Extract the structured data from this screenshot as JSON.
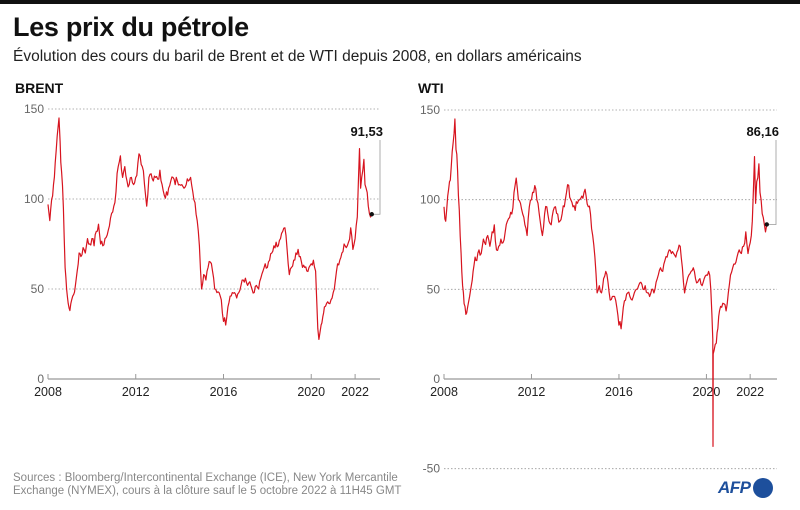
{
  "header": {
    "title": "Les prix du pétrole",
    "subtitle": "Évolution des cours du baril de Brent et de WTI depuis 2008, en dollars américains"
  },
  "footer": {
    "source_line1": "Sources : Bloomberg/Intercontinental Exchange (ICE), New York Mercantile",
    "source_line2": "Exchange (NYMEX), cours à la clôture sauf le 5 octobre 2022 à 11H45 GMT",
    "logo_text": "AFP"
  },
  "colors": {
    "line": "#d7141f",
    "grid": "#999999",
    "axis": "#999999",
    "logo": "#1d4f9c"
  },
  "chart_data": [
    {
      "type": "line",
      "title": "BRENT",
      "xlabel": "",
      "ylabel": "",
      "x_ticks": [
        "2008",
        "2012",
        "2016",
        "2020",
        "2022"
      ],
      "x_tick_values": [
        2008,
        2012,
        2016,
        2020,
        2022
      ],
      "y_ticks": [
        "0",
        "50",
        "100",
        "150"
      ],
      "y_tick_values": [
        0,
        50,
        100,
        150
      ],
      "xlim": [
        2008,
        2022.77
      ],
      "ylim": [
        0,
        150
      ],
      "grid": true,
      "last_value_label": "91,53",
      "last_value": 91.53,
      "series": [
        {
          "name": "Brent",
          "x": [
            2008.0,
            2008.08,
            2008.17,
            2008.25,
            2008.33,
            2008.42,
            2008.5,
            2008.55,
            2008.62,
            2008.7,
            2008.78,
            2008.85,
            2008.92,
            2009.0,
            2009.08,
            2009.17,
            2009.25,
            2009.33,
            2009.42,
            2009.5,
            2009.6,
            2009.7,
            2009.8,
            2009.9,
            2010.0,
            2010.1,
            2010.2,
            2010.3,
            2010.4,
            2010.5,
            2010.6,
            2010.7,
            2010.8,
            2010.9,
            2011.0,
            2011.1,
            2011.2,
            2011.3,
            2011.4,
            2011.5,
            2011.6,
            2011.7,
            2011.8,
            2011.9,
            2012.0,
            2012.1,
            2012.2,
            2012.3,
            2012.4,
            2012.5,
            2012.6,
            2012.7,
            2012.8,
            2012.9,
            2013.0,
            2013.1,
            2013.2,
            2013.3,
            2013.4,
            2013.5,
            2013.6,
            2013.7,
            2013.8,
            2013.9,
            2014.0,
            2014.1,
            2014.2,
            2014.3,
            2014.4,
            2014.5,
            2014.6,
            2014.7,
            2014.8,
            2014.9,
            2015.0,
            2015.1,
            2015.2,
            2015.3,
            2015.4,
            2015.5,
            2015.6,
            2015.7,
            2015.8,
            2015.9,
            2016.0,
            2016.05,
            2016.1,
            2016.2,
            2016.3,
            2016.4,
            2016.5,
            2016.6,
            2016.7,
            2016.8,
            2016.9,
            2017.0,
            2017.1,
            2017.2,
            2017.3,
            2017.4,
            2017.5,
            2017.6,
            2017.7,
            2017.8,
            2017.9,
            2018.0,
            2018.1,
            2018.2,
            2018.3,
            2018.4,
            2018.5,
            2018.6,
            2018.7,
            2018.8,
            2018.9,
            2019.0,
            2019.1,
            2019.2,
            2019.3,
            2019.4,
            2019.5,
            2019.6,
            2019.7,
            2019.8,
            2019.9,
            2020.0,
            2020.1,
            2020.2,
            2020.25,
            2020.3,
            2020.35,
            2020.45,
            2020.6,
            2020.7,
            2020.8,
            2020.9,
            2021.0,
            2021.1,
            2021.2,
            2021.3,
            2021.4,
            2021.5,
            2021.6,
            2021.7,
            2021.8,
            2021.9,
            2022.0,
            2022.1,
            2022.15,
            2022.2,
            2022.25,
            2022.3,
            2022.4,
            2022.45,
            2022.5,
            2022.6,
            2022.65,
            2022.7,
            2022.76
          ],
          "y": [
            97,
            88,
            100,
            108,
            120,
            135,
            145,
            132,
            115,
            95,
            62,
            50,
            42,
            38,
            44,
            47,
            52,
            60,
            70,
            68,
            73,
            70,
            78,
            75,
            78,
            74,
            82,
            86,
            75,
            74,
            78,
            80,
            85,
            92,
            96,
            104,
            118,
            124,
            112,
            118,
            110,
            108,
            112,
            108,
            112,
            120,
            124,
            118,
            108,
            96,
            112,
            114,
            110,
            112,
            111,
            116,
            108,
            102,
            104,
            106,
            110,
            112,
            108,
            110,
            108,
            108,
            106,
            108,
            110,
            112,
            104,
            98,
            88,
            74,
            50,
            58,
            55,
            62,
            65,
            60,
            50,
            48,
            48,
            44,
            32,
            34,
            30,
            40,
            46,
            48,
            48,
            45,
            48,
            52,
            55,
            56,
            52,
            54,
            50,
            48,
            52,
            50,
            56,
            60,
            64,
            62,
            66,
            70,
            74,
            76,
            74,
            78,
            82,
            84,
            72,
            58,
            62,
            66,
            70,
            72,
            68,
            62,
            62,
            60,
            62,
            64,
            66,
            60,
            44,
            28,
            22,
            30,
            40,
            42,
            42,
            44,
            48,
            55,
            64,
            66,
            70,
            75,
            73,
            76,
            84,
            72,
            78,
            90,
            110,
            128,
            106,
            112,
            122,
            108,
            106,
            96,
            92,
            90,
            91.53
          ]
        }
      ]
    },
    {
      "type": "line",
      "title": "WTI",
      "xlabel": "",
      "ylabel": "",
      "x_ticks": [
        "2008",
        "2012",
        "2016",
        "2020",
        "2022"
      ],
      "x_tick_values": [
        2008,
        2012,
        2016,
        2020,
        2022
      ],
      "y_ticks": [
        "-50",
        "0",
        "50",
        "100",
        "150"
      ],
      "y_tick_values": [
        -50,
        0,
        50,
        100,
        150
      ],
      "xlim": [
        2008,
        2022.77
      ],
      "ylim": [
        -50,
        150
      ],
      "grid": true,
      "last_value_label": "86,16",
      "last_value": 86.16,
      "series": [
        {
          "name": "WTI",
          "x": [
            2008.0,
            2008.08,
            2008.17,
            2008.25,
            2008.33,
            2008.42,
            2008.5,
            2008.55,
            2008.62,
            2008.7,
            2008.78,
            2008.85,
            2008.92,
            2009.0,
            2009.08,
            2009.17,
            2009.25,
            2009.33,
            2009.42,
            2009.5,
            2009.6,
            2009.7,
            2009.8,
            2009.9,
            2010.0,
            2010.1,
            2010.2,
            2010.3,
            2010.4,
            2010.5,
            2010.6,
            2010.7,
            2010.8,
            2010.9,
            2011.0,
            2011.1,
            2011.2,
            2011.3,
            2011.4,
            2011.5,
            2011.6,
            2011.7,
            2011.8,
            2011.9,
            2012.0,
            2012.1,
            2012.2,
            2012.3,
            2012.4,
            2012.5,
            2012.6,
            2012.7,
            2012.8,
            2012.9,
            2013.0,
            2013.1,
            2013.2,
            2013.3,
            2013.4,
            2013.5,
            2013.6,
            2013.7,
            2013.8,
            2013.9,
            2014.0,
            2014.1,
            2014.2,
            2014.3,
            2014.4,
            2014.5,
            2014.6,
            2014.7,
            2014.8,
            2014.9,
            2015.0,
            2015.1,
            2015.2,
            2015.3,
            2015.4,
            2015.5,
            2015.6,
            2015.7,
            2015.8,
            2015.9,
            2016.0,
            2016.05,
            2016.1,
            2016.2,
            2016.3,
            2016.4,
            2016.5,
            2016.6,
            2016.7,
            2016.8,
            2016.9,
            2017.0,
            2017.1,
            2017.2,
            2017.3,
            2017.4,
            2017.5,
            2017.6,
            2017.7,
            2017.8,
            2017.9,
            2018.0,
            2018.1,
            2018.2,
            2018.3,
            2018.4,
            2018.5,
            2018.6,
            2018.7,
            2018.8,
            2018.9,
            2019.0,
            2019.1,
            2019.2,
            2019.3,
            2019.4,
            2019.5,
            2019.6,
            2019.7,
            2019.8,
            2019.9,
            2020.0,
            2020.1,
            2020.15,
            2020.2,
            2020.25,
            2020.29,
            2020.3,
            2020.31,
            2020.35,
            2020.45,
            2020.6,
            2020.7,
            2020.8,
            2020.9,
            2021.0,
            2021.1,
            2021.2,
            2021.3,
            2021.4,
            2021.5,
            2021.6,
            2021.7,
            2021.8,
            2021.9,
            2022.0,
            2022.1,
            2022.15,
            2022.2,
            2022.25,
            2022.3,
            2022.4,
            2022.45,
            2022.5,
            2022.6,
            2022.65,
            2022.7,
            2022.76
          ],
          "y": [
            96,
            88,
            102,
            110,
            118,
            132,
            145,
            128,
            116,
            94,
            70,
            52,
            42,
            36,
            40,
            46,
            52,
            60,
            68,
            66,
            72,
            70,
            78,
            75,
            80,
            74,
            82,
            86,
            72,
            74,
            78,
            76,
            82,
            88,
            90,
            92,
            104,
            112,
            100,
            98,
            92,
            86,
            80,
            96,
            100,
            104,
            106,
            98,
            88,
            80,
            92,
            96,
            88,
            86,
            94,
            96,
            92,
            88,
            92,
            96,
            104,
            108,
            100,
            96,
            94,
            98,
            100,
            102,
            104,
            102,
            96,
            92,
            80,
            68,
            48,
            52,
            48,
            56,
            60,
            54,
            44,
            46,
            46,
            40,
            30,
            32,
            28,
            40,
            44,
            48,
            46,
            44,
            48,
            50,
            52,
            54,
            50,
            52,
            48,
            46,
            50,
            48,
            54,
            58,
            62,
            60,
            66,
            68,
            72,
            70,
            70,
            68,
            72,
            74,
            62,
            48,
            54,
            58,
            60,
            62,
            56,
            54,
            56,
            52,
            56,
            58,
            60,
            58,
            50,
            36,
            22,
            -37.6,
            14,
            16,
            20,
            38,
            40,
            42,
            38,
            48,
            58,
            62,
            64,
            68,
            72,
            70,
            74,
            82,
            70,
            76,
            88,
            105,
            124,
            98,
            110,
            120,
            104,
            100,
            90,
            86,
            82,
            86.16
          ]
        }
      ]
    }
  ]
}
